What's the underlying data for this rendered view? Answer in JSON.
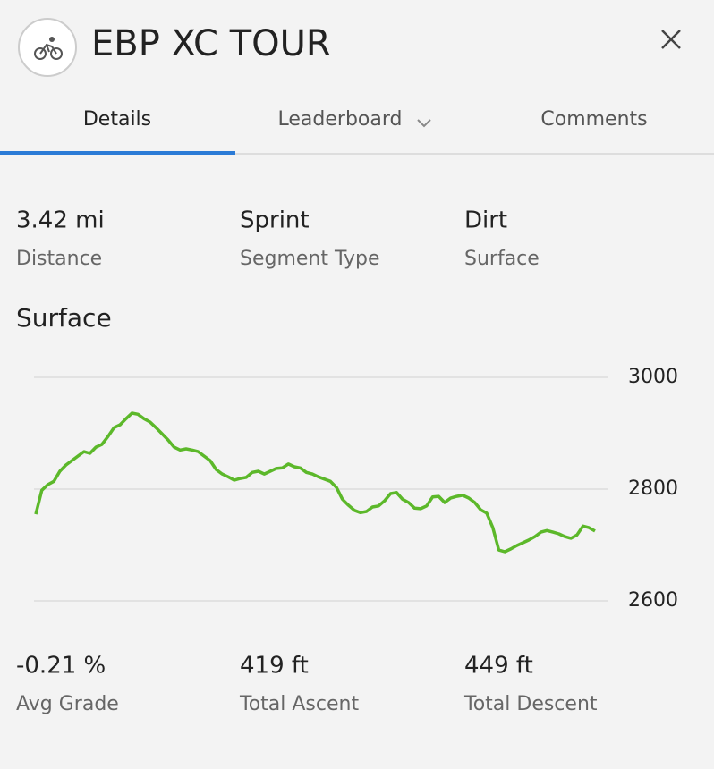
{
  "header": {
    "title": "EBP XC TOUR"
  },
  "tabs": [
    "Details",
    "Leaderboard",
    "Comments"
  ],
  "stats": [
    {
      "value": "3.42 mi",
      "label": "Distance"
    },
    {
      "value": "Sprint",
      "label": "Segment Type"
    },
    {
      "value": "Dirt",
      "label": "Surface"
    }
  ],
  "chart_data": {
    "type": "line",
    "title": "Surface",
    "color": "#5cb82a",
    "values": [
      2755,
      2798,
      2808,
      2814,
      2832,
      2843,
      2851,
      2859,
      2867,
      2864,
      2875,
      2880,
      2894,
      2910,
      2915,
      2926,
      2936,
      2934,
      2926,
      2920,
      2910,
      2899,
      2888,
      2875,
      2870,
      2872,
      2870,
      2867,
      2859,
      2851,
      2835,
      2827,
      2822,
      2816,
      2819,
      2821,
      2830,
      2832,
      2827,
      2832,
      2837,
      2838,
      2845,
      2840,
      2838,
      2830,
      2827,
      2822,
      2818,
      2814,
      2803,
      2782,
      2771,
      2762,
      2758,
      2760,
      2768,
      2770,
      2779,
      2792,
      2794,
      2782,
      2776,
      2766,
      2765,
      2770,
      2786,
      2787,
      2776,
      2784,
      2787,
      2789,
      2784,
      2776,
      2763,
      2757,
      2731,
      2691,
      2688,
      2693,
      2699,
      2704,
      2709,
      2715,
      2723,
      2726,
      2723,
      2720,
      2715,
      2712,
      2718,
      2734,
      2731,
      2725
    ],
    "ylim": [
      2600,
      3000
    ],
    "yticks": [
      2600,
      2800,
      3000
    ],
    "grid": true
  },
  "summary": [
    {
      "value": "-0.21 %",
      "label": "Avg Grade"
    },
    {
      "value": "419 ft",
      "label": "Total Ascent"
    },
    {
      "value": "449 ft",
      "label": "Total Descent"
    }
  ]
}
